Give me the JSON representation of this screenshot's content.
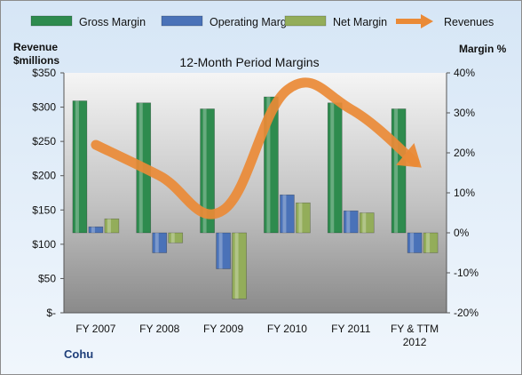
{
  "chart_data": {
    "type": "bar",
    "title": "12-Month Period Margins",
    "company": "Cohu",
    "y_left_label": [
      "Revenue",
      "$millions"
    ],
    "y_right_label": "Margin %",
    "categories": [
      [
        "FY 2007"
      ],
      [
        "FY 2008"
      ],
      [
        "FY 2009"
      ],
      [
        "FY 2010"
      ],
      [
        "FY 2011"
      ],
      [
        "FY & TTM",
        "2012"
      ]
    ],
    "left_axis": {
      "min": 0,
      "max": 350,
      "step": 50,
      "tick_labels": [
        "$-",
        "$50",
        "$100",
        "$150",
        "$200",
        "$250",
        "$300",
        "$350"
      ]
    },
    "right_axis": {
      "min": -20,
      "max": 40,
      "step": 10,
      "tick_labels": [
        "-20%",
        "-10%",
        "0%",
        "10%",
        "20%",
        "30%",
        "40%"
      ]
    },
    "series": [
      {
        "name": "Gross Margin",
        "type": "bar",
        "axis": "right",
        "color": "#2e8b4e",
        "values": [
          33,
          32.5,
          31,
          34,
          32.5,
          31
        ]
      },
      {
        "name": "Operating Margin",
        "type": "bar",
        "axis": "right",
        "color": "#4a72b8",
        "values": [
          1.5,
          -5,
          -9,
          9.5,
          5.5,
          -5
        ]
      },
      {
        "name": "Net Margin",
        "type": "bar",
        "axis": "right",
        "color": "#93ad5a",
        "values": [
          3.5,
          -2.5,
          -16.5,
          7.5,
          5,
          -5
        ]
      },
      {
        "name": "Revenues",
        "type": "line",
        "axis": "left",
        "color": "#ea8a36",
        "values": [
          245,
          200,
          150,
          325,
          297,
          220
        ]
      }
    ],
    "legend_position": "top",
    "grid": false
  }
}
